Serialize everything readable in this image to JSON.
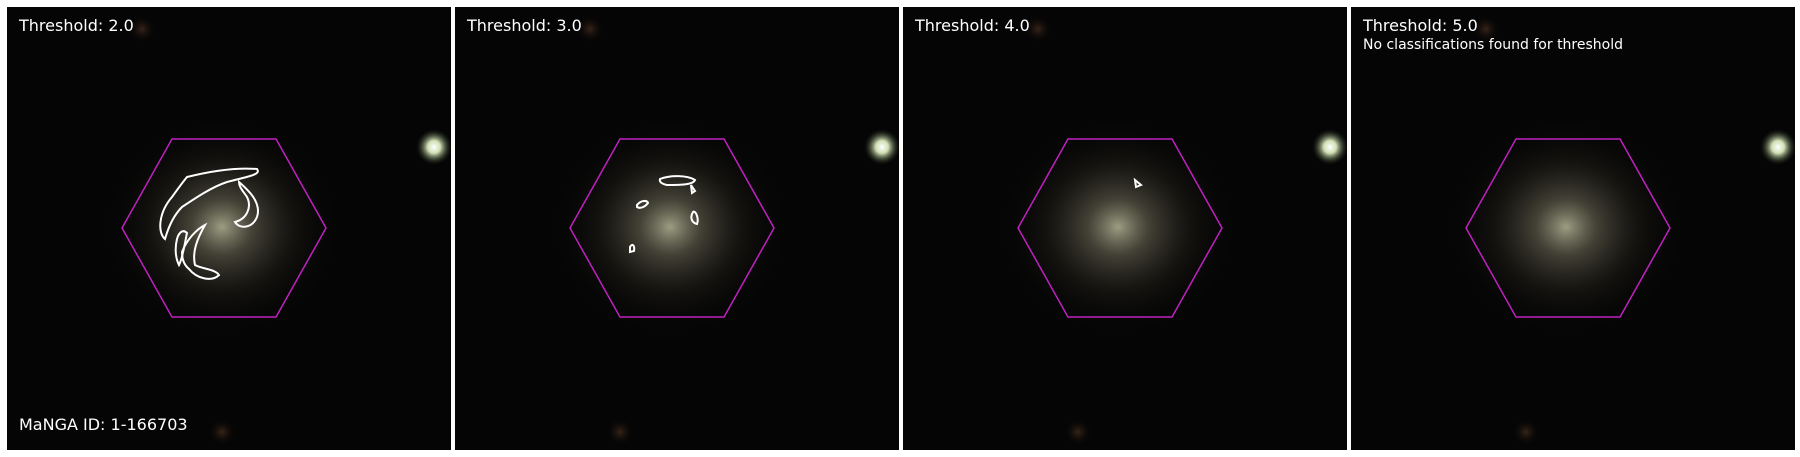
{
  "panels": [
    {
      "threshold_label": "Threshold: 2.0",
      "note": ""
    },
    {
      "threshold_label": "Threshold: 3.0",
      "note": ""
    },
    {
      "threshold_label": "Threshold: 4.0",
      "note": ""
    },
    {
      "threshold_label": "Threshold: 5.0",
      "note": "No classifications found for threshold"
    }
  ],
  "manga_id_label": "MaNGA ID: 1-166703",
  "colors": {
    "background": "#050505",
    "hexagon": "#c020c0",
    "contour": "#ffffff",
    "separator": "#ffffff"
  }
}
